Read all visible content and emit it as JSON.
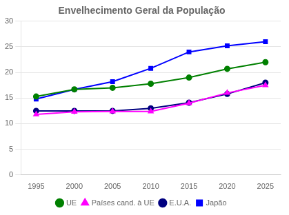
{
  "chart_data": {
    "type": "line",
    "title": "Envelhecimento Geral da População",
    "x": [
      1995,
      2000,
      2005,
      2010,
      2015,
      2020,
      2025
    ],
    "series": [
      {
        "name": "UE",
        "color": "#008000",
        "marker": "circle",
        "values": [
          15.3,
          16.7,
          17.0,
          17.8,
          19.0,
          20.7,
          22.0
        ]
      },
      {
        "name": "Países cand. à UE",
        "color": "#FF00FF",
        "marker": "triangle",
        "values": [
          11.8,
          12.3,
          12.4,
          12.4,
          14.0,
          16.0,
          17.5
        ]
      },
      {
        "name": "E.U.A.",
        "color": "#000080",
        "marker": "circle",
        "values": [
          12.5,
          12.5,
          12.5,
          13.0,
          14.1,
          15.8,
          18.0
        ]
      },
      {
        "name": "Japão",
        "color": "#0000FF",
        "marker": "square",
        "values": [
          14.8,
          16.7,
          18.2,
          20.8,
          24.0,
          25.2,
          26.0
        ]
      }
    ],
    "xlim": [
      1993,
      2027
    ],
    "xticks": [
      1995,
      2000,
      2005,
      2010,
      2015,
      2020,
      2025
    ],
    "ylim": [
      0,
      30
    ],
    "yticks": [
      0,
      5,
      10,
      15,
      20,
      25,
      30
    ],
    "grid": "y",
    "legend": "bottom"
  }
}
